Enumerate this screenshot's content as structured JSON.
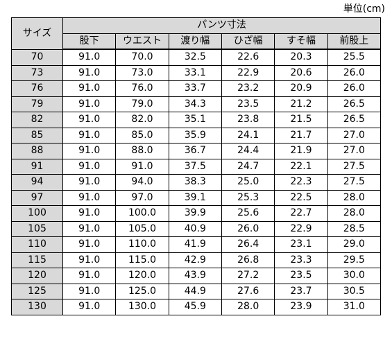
{
  "unit_label": "単位(cm)",
  "header": {
    "size_label": "サイズ",
    "group_label": "パンツ寸法",
    "columns": [
      "股下",
      "ウエスト",
      "渡り幅",
      "ひざ幅",
      "すそ幅",
      "前股上"
    ]
  },
  "rows": [
    [
      "70",
      "91.0",
      "70.0",
      "32.5",
      "22.6",
      "20.3",
      "25.5"
    ],
    [
      "73",
      "91.0",
      "73.0",
      "33.1",
      "22.9",
      "20.6",
      "26.0"
    ],
    [
      "76",
      "91.0",
      "76.0",
      "33.7",
      "23.2",
      "20.9",
      "26.0"
    ],
    [
      "79",
      "91.0",
      "79.0",
      "34.3",
      "23.5",
      "21.2",
      "26.5"
    ],
    [
      "82",
      "91.0",
      "82.0",
      "35.1",
      "23.8",
      "21.5",
      "26.5"
    ],
    [
      "85",
      "91.0",
      "85.0",
      "35.9",
      "24.1",
      "21.7",
      "27.0"
    ],
    [
      "88",
      "91.0",
      "88.0",
      "36.7",
      "24.4",
      "21.9",
      "27.0"
    ],
    [
      "91",
      "91.0",
      "91.0",
      "37.5",
      "24.7",
      "22.1",
      "27.5"
    ],
    [
      "94",
      "91.0",
      "94.0",
      "38.3",
      "25.0",
      "22.3",
      "27.5"
    ],
    [
      "97",
      "91.0",
      "97.0",
      "39.1",
      "25.3",
      "22.5",
      "28.0"
    ],
    [
      "100",
      "91.0",
      "100.0",
      "39.9",
      "25.6",
      "22.7",
      "28.0"
    ],
    [
      "105",
      "91.0",
      "105.0",
      "40.9",
      "26.0",
      "22.9",
      "28.5"
    ],
    [
      "110",
      "91.0",
      "110.0",
      "41.9",
      "26.4",
      "23.1",
      "29.0"
    ],
    [
      "115",
      "91.0",
      "115.0",
      "42.9",
      "26.8",
      "23.3",
      "29.5"
    ],
    [
      "120",
      "91.0",
      "120.0",
      "43.9",
      "27.2",
      "23.5",
      "30.0"
    ],
    [
      "125",
      "91.0",
      "125.0",
      "44.9",
      "27.6",
      "23.7",
      "30.5"
    ],
    [
      "130",
      "91.0",
      "130.0",
      "45.9",
      "28.0",
      "23.9",
      "31.0"
    ]
  ],
  "colors": {
    "header_bg": "#d9d9d9",
    "border": "#000000",
    "cell_bg": "#ffffff"
  }
}
